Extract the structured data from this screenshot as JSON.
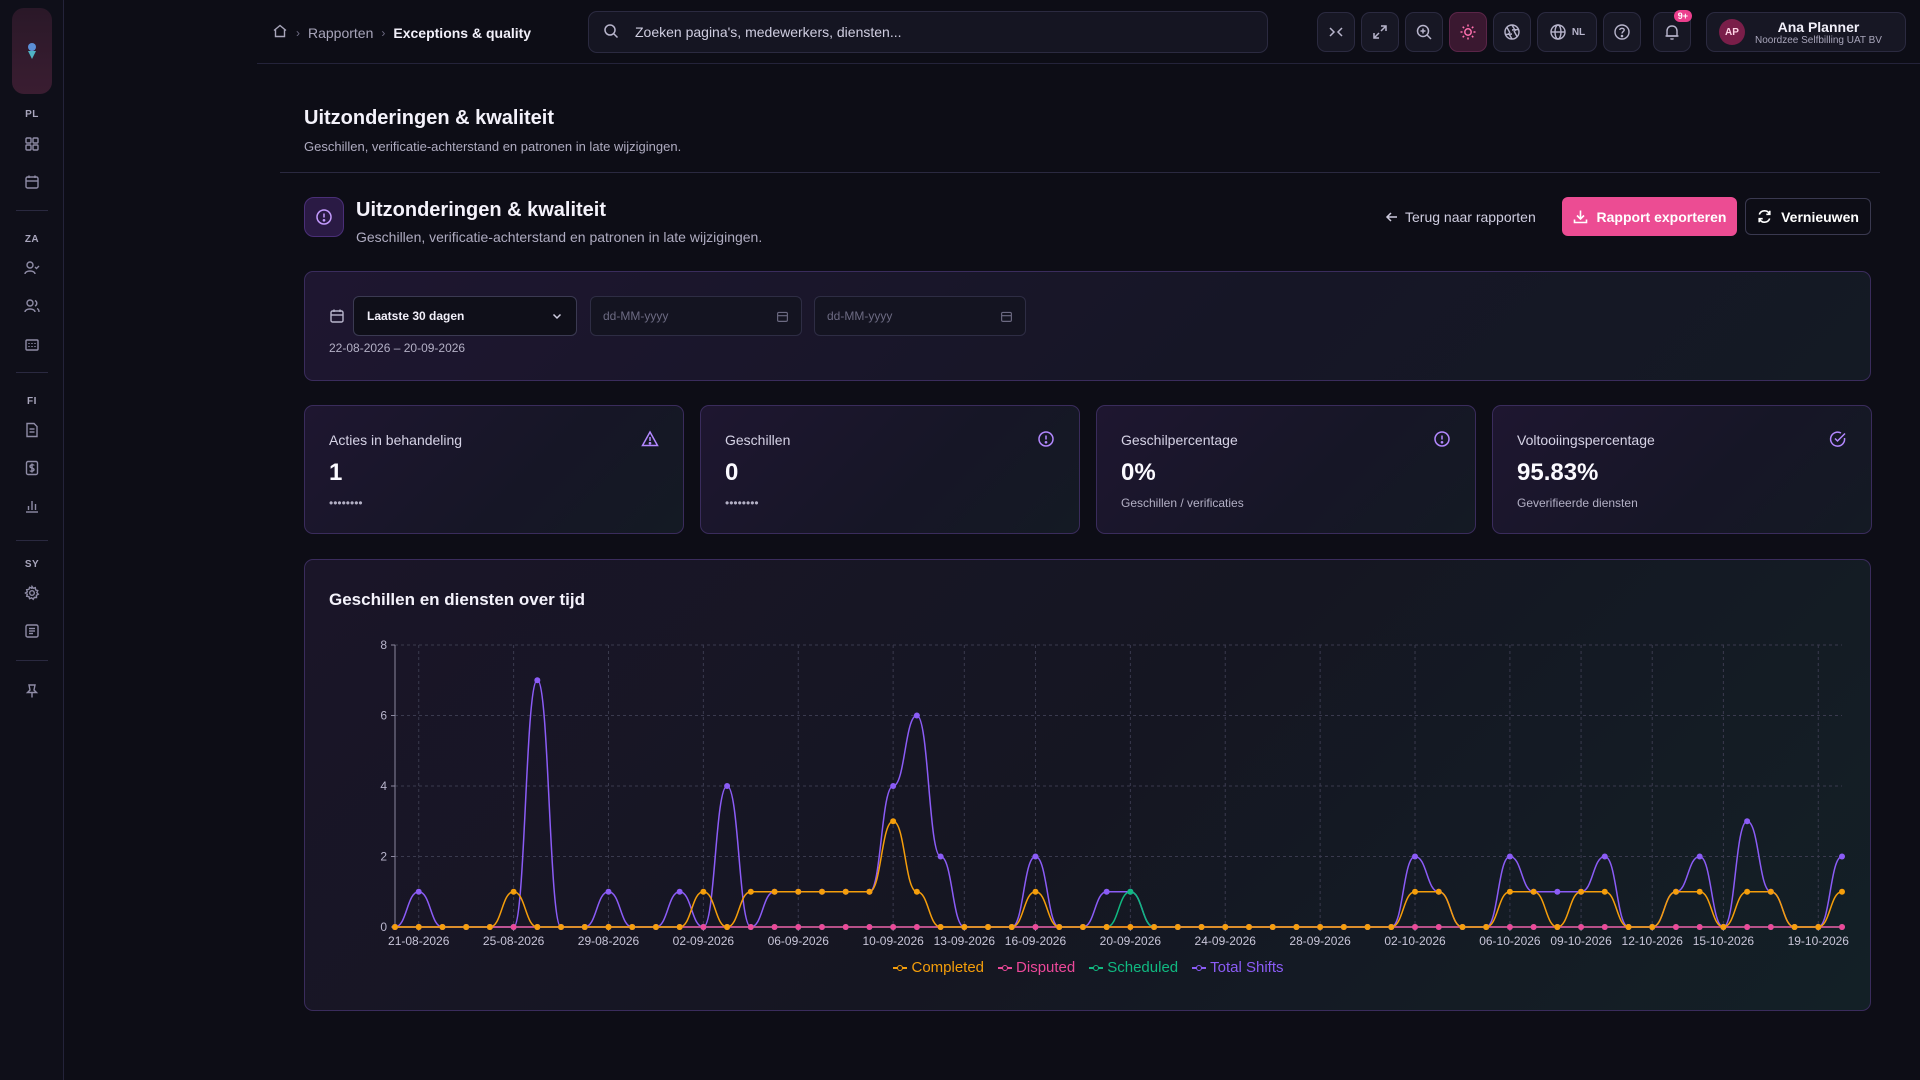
{
  "sidebar": {
    "sections": [
      {
        "label": "PL",
        "items": [
          "dashboard-icon",
          "calendar-icon"
        ]
      },
      {
        "label": "ZA",
        "items": [
          "user-check-icon",
          "users-icon",
          "building-icon"
        ]
      },
      {
        "label": "FI",
        "items": [
          "invoice-icon",
          "dollar-icon",
          "bar-chart-icon"
        ]
      },
      {
        "label": "SY",
        "items": [
          "settings-icon",
          "logs-icon"
        ]
      }
    ]
  },
  "topbar": {
    "breadcrumb": {
      "parent": "Rapporten",
      "current": "Exceptions & quality"
    },
    "search_placeholder": "Zoeken pagina's, medewerkers, diensten...",
    "lang": "NL",
    "notifications": "9+",
    "user": {
      "initials": "AP",
      "name": "Ana Planner",
      "org": "Noordzee Selfbilling UAT BV"
    }
  },
  "page": {
    "title": "Uitzonderingen & kwaliteit",
    "subtitle": "Geschillen, verificatie-achterstand en patronen in late wijzigingen."
  },
  "report": {
    "title": "Uitzonderingen & kwaliteit",
    "subtitle": "Geschillen, verificatie-achterstand en patronen in late wijzigingen.",
    "back_label": "Terug naar rapporten",
    "export_label": "Rapport exporteren",
    "refresh_label": "Vernieuwen"
  },
  "filters": {
    "period": "Laatste 30 dagen",
    "from_placeholder": "dd-MM-yyyy",
    "to_placeholder": "dd-MM-yyyy",
    "range": "22-08-2026 – 20-09-2026"
  },
  "kpis": [
    {
      "label": "Acties in behandeling",
      "value": "1",
      "sub": "••••••••",
      "icon": "warning-icon"
    },
    {
      "label": "Geschillen",
      "value": "0",
      "sub": "••••••••",
      "icon": "alert-circle-icon"
    },
    {
      "label": "Geschilpercentage",
      "value": "0%",
      "sub": "Geschillen / verificaties",
      "icon": "alert-circle-icon"
    },
    {
      "label": "Voltooiingspercentage",
      "value": "95.83%",
      "sub": "Geverifieerde diensten",
      "icon": "check-circle-icon"
    }
  ],
  "chart": {
    "title": "Geschillen en diensten over tijd"
  },
  "chart_data": {
    "type": "line",
    "title": "Geschillen en diensten over tijd",
    "x": [
      "20-08-2026",
      "21-08-2026",
      "22-08-2026",
      "23-08-2026",
      "24-08-2026",
      "25-08-2026",
      "26-08-2026",
      "27-08-2026",
      "28-08-2026",
      "29-08-2026",
      "30-08-2026",
      "31-08-2026",
      "01-09-2026",
      "02-09-2026",
      "03-09-2026",
      "04-09-2026",
      "05-09-2026",
      "06-09-2026",
      "07-09-2026",
      "08-09-2026",
      "09-09-2026",
      "10-09-2026",
      "11-09-2026",
      "12-09-2026",
      "13-09-2026",
      "14-09-2026",
      "15-09-2026",
      "16-09-2026",
      "17-09-2026",
      "18-09-2026",
      "19-09-2026",
      "20-09-2026",
      "21-09-2026",
      "22-09-2026",
      "23-09-2026",
      "24-09-2026",
      "25-09-2026",
      "26-09-2026",
      "27-09-2026",
      "28-09-2026",
      "29-09-2026",
      "30-09-2026",
      "01-10-2026",
      "02-10-2026",
      "03-10-2026",
      "04-10-2026",
      "05-10-2026",
      "06-10-2026",
      "07-10-2026",
      "08-10-2026",
      "09-10-2026",
      "10-10-2026",
      "11-10-2026",
      "12-10-2026",
      "13-10-2026",
      "14-10-2026",
      "15-10-2026",
      "16-10-2026",
      "17-10-2026",
      "18-10-2026",
      "19-10-2026",
      "20-10-2026"
    ],
    "xticks": [
      "21-08-2026",
      "25-08-2026",
      "29-08-2026",
      "02-09-2026",
      "06-09-2026",
      "10-09-2026",
      "13-09-2026",
      "16-09-2026",
      "20-09-2026",
      "24-09-2026",
      "28-09-2026",
      "02-10-2026",
      "06-10-2026",
      "09-10-2026",
      "12-10-2026",
      "15-10-2026",
      "19-10-2026"
    ],
    "ylim": [
      0,
      8
    ],
    "yticks": [
      0,
      2,
      4,
      6,
      8
    ],
    "grid": true,
    "legend": "bottom",
    "series": [
      {
        "name": "Completed",
        "color": "#f59e0b",
        "values": [
          0,
          0,
          0,
          0,
          0,
          1,
          0,
          0,
          0,
          0,
          0,
          0,
          0,
          1,
          0,
          1,
          1,
          1,
          1,
          1,
          1,
          3,
          1,
          0,
          0,
          0,
          0,
          1,
          0,
          0,
          0,
          0,
          0,
          0,
          0,
          0,
          0,
          0,
          0,
          0,
          0,
          0,
          0,
          1,
          1,
          0,
          0,
          1,
          1,
          0,
          1,
          1,
          0,
          0,
          1,
          1,
          0,
          1,
          1,
          0,
          0,
          1
        ]
      },
      {
        "name": "Disputed",
        "color": "#ec4899",
        "values": [
          0,
          0,
          0,
          0,
          0,
          0,
          0,
          0,
          0,
          0,
          0,
          0,
          0,
          0,
          0,
          0,
          0,
          0,
          0,
          0,
          0,
          0,
          0,
          0,
          0,
          0,
          0,
          0,
          0,
          0,
          0,
          0,
          0,
          0,
          0,
          0,
          0,
          0,
          0,
          0,
          0,
          0,
          0,
          0,
          0,
          0,
          0,
          0,
          0,
          0,
          0,
          0,
          0,
          0,
          0,
          0,
          0,
          0,
          0,
          0,
          0,
          0
        ]
      },
      {
        "name": "Scheduled",
        "color": "#10b981",
        "values": [
          0,
          0,
          0,
          0,
          0,
          0,
          0,
          0,
          0,
          0,
          0,
          0,
          0,
          0,
          0,
          0,
          0,
          0,
          0,
          0,
          0,
          0,
          0,
          0,
          0,
          0,
          0,
          0,
          0,
          0,
          0,
          1,
          0,
          0,
          0,
          0,
          0,
          0,
          0,
          0,
          0,
          0,
          0,
          0,
          0,
          0,
          0,
          0,
          0,
          0,
          0,
          0,
          0,
          0,
          0,
          0,
          0,
          0,
          0,
          0,
          0,
          0
        ]
      },
      {
        "name": "Total Shifts",
        "color": "#8b5cf6",
        "values": [
          0,
          1,
          0,
          0,
          0,
          0,
          7,
          0,
          0,
          1,
          0,
          0,
          1,
          0,
          4,
          0,
          1,
          1,
          1,
          1,
          1,
          4,
          6,
          2,
          0,
          0,
          0,
          2,
          0,
          0,
          1,
          1,
          0,
          0,
          0,
          0,
          0,
          0,
          0,
          0,
          0,
          0,
          0,
          2,
          1,
          0,
          0,
          2,
          1,
          1,
          1,
          2,
          0,
          0,
          1,
          2,
          0,
          3,
          1,
          0,
          0,
          2
        ]
      }
    ]
  }
}
